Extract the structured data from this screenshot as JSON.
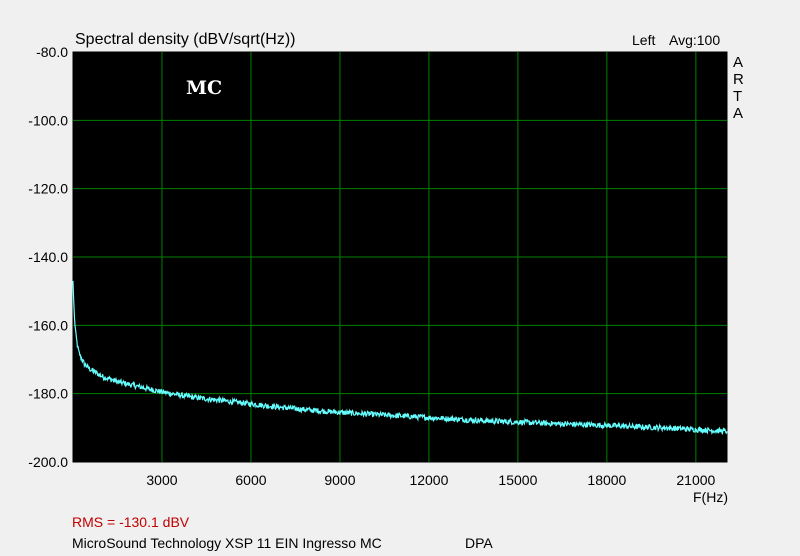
{
  "chart_data": {
    "type": "line",
    "title": "Spectral density (dBV/sqrt(Hz))",
    "channel": "Left",
    "averaging": "Avg:100",
    "watermark": "MC",
    "vendor_label": [
      "A",
      "R",
      "T",
      "A"
    ],
    "xlabel": "F(Hz)",
    "ylabel": "",
    "xlim": [
      0,
      22050
    ],
    "ylim": [
      -200,
      -80
    ],
    "xticks": [
      3000,
      6000,
      9000,
      12000,
      15000,
      18000,
      21000
    ],
    "xtick_labels": [
      "3000",
      "6000",
      "9000",
      "12000",
      "15000",
      "18000",
      "21000"
    ],
    "yticks": [
      -80,
      -100,
      -120,
      -140,
      -160,
      -180,
      -200
    ],
    "ytick_labels": [
      "-80.0",
      "-100.0",
      "-120.0",
      "-140.0",
      "-160.0",
      "-180.0",
      "-200.0"
    ],
    "grid": true,
    "background": "#000000",
    "grid_color": "#008000",
    "series": [
      {
        "color": "#66ffff",
        "x": [
          0,
          20,
          50,
          100,
          150,
          200,
          300,
          400,
          600,
          800,
          1000,
          1500,
          2000,
          3000,
          4000,
          5000,
          6000,
          7000,
          8000,
          9000,
          10000,
          11000,
          12000,
          13000,
          14000,
          15000,
          16000,
          17000,
          18000,
          19000,
          20000,
          21000,
          22050
        ],
        "y": [
          -147,
          -152,
          -158,
          -163,
          -166,
          -168,
          -170,
          -171.5,
          -173,
          -174,
          -175,
          -176.5,
          -177.5,
          -179.5,
          -181,
          -182,
          -183,
          -184,
          -184.8,
          -185.5,
          -186,
          -186.5,
          -187,
          -187.5,
          -188,
          -188.3,
          -188.7,
          -189,
          -189.3,
          -189.7,
          -190,
          -190.5,
          -191
        ]
      }
    ]
  },
  "footer": {
    "rms": "RMS = -130.1 dBV",
    "description": "MicroSound Technology XSP 11 EIN Ingresso MC",
    "brand": "DPA"
  }
}
